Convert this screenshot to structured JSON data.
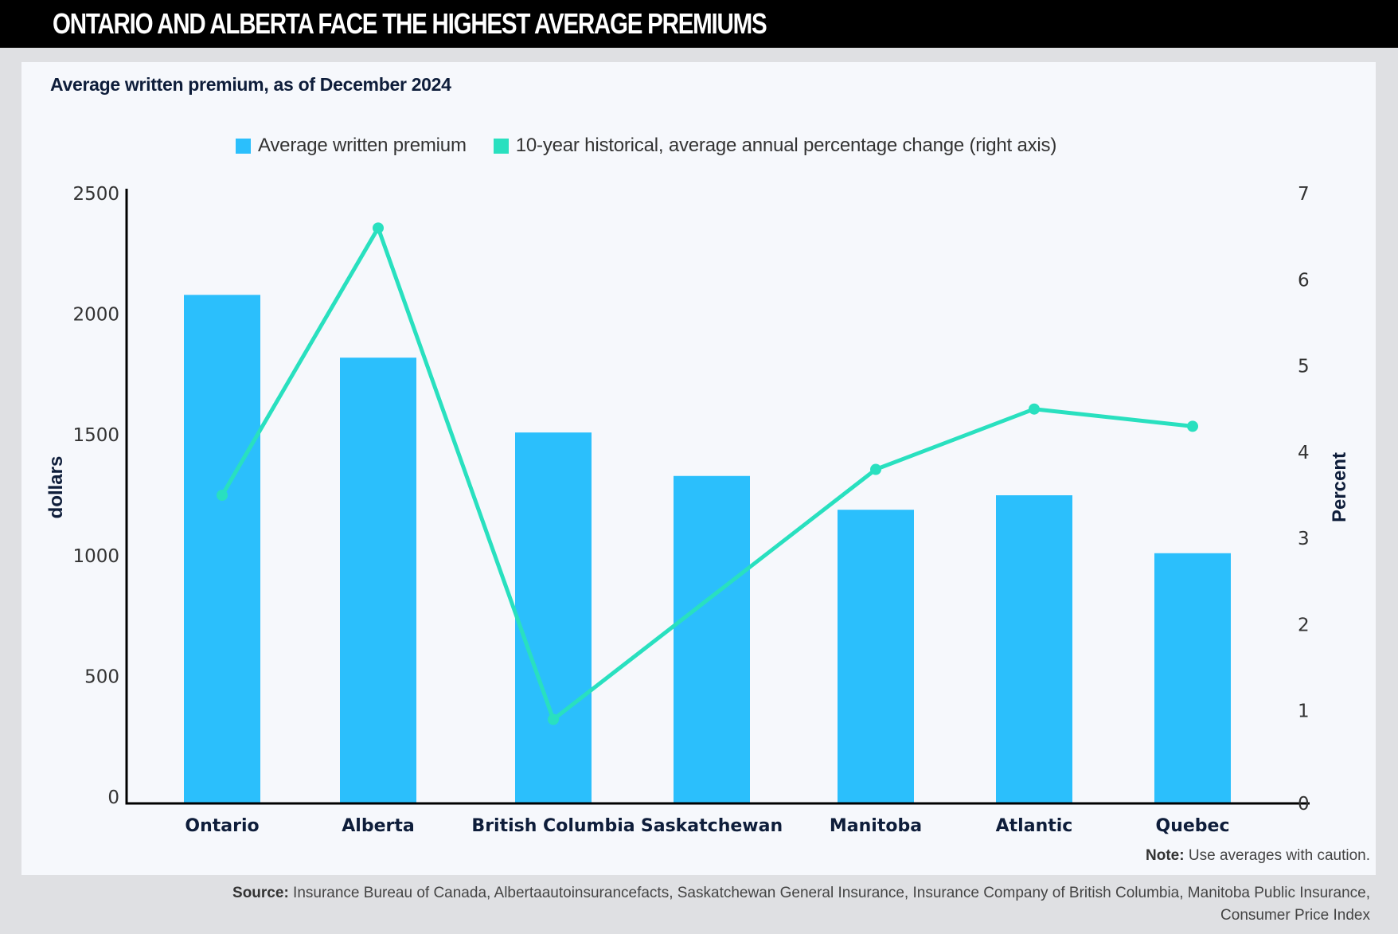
{
  "header": {
    "title": "ONTARIO AND ALBERTA FACE THE HIGHEST AVERAGE PREMIUMS"
  },
  "subtitle": "Average written premium, as of December 2024",
  "colors": {
    "bar": "#2bbffc",
    "line": "#29e0bf",
    "axis": "#000000",
    "title_bar": "#000000",
    "panel": "#f6f8fc",
    "background": "#dfe0e3"
  },
  "chart_data": {
    "type": "bar",
    "title": "Average written premium, as of December 2024",
    "categories": [
      "Ontario",
      "Alberta",
      "British Columbia",
      "Saskatchewan",
      "Manitoba",
      "Atlantic",
      "Quebec"
    ],
    "series": [
      {
        "name": "Average written premium",
        "type": "bar",
        "axis": "left",
        "values": [
          2080,
          1820,
          1510,
          1330,
          1190,
          1250,
          1010
        ]
      },
      {
        "name": "10-year historical, average annual percentage change (right axis)",
        "type": "line",
        "axis": "right",
        "values": [
          3.5,
          6.6,
          0.9,
          null,
          3.8,
          4.5,
          4.3
        ]
      }
    ],
    "ylabel": "dollars",
    "ylim": [
      0,
      2500
    ],
    "yticks": [
      "0",
      "500",
      "1000",
      "1500",
      "2000",
      "2500"
    ],
    "y2label": "Percent",
    "y2lim": [
      0,
      7
    ],
    "y2ticks": [
      "0",
      "1",
      "2",
      "3",
      "4",
      "5",
      "6",
      "7"
    ],
    "xlabel": "",
    "grid": false,
    "legend": "top-center",
    "legend_entries": [
      "Average written premium",
      "10-year historical, average annual percentage change (right axis)"
    ]
  },
  "note": {
    "label": "Note:",
    "text": " Use averages with caution."
  },
  "source": {
    "label": "Source:",
    "text": " Insurance Bureau of Canada, Albertaautoinsurancefacts, Saskatchewan General Insurance, Insurance Company of British Columbia, Manitoba Public Insurance, Consumer Price Index"
  }
}
